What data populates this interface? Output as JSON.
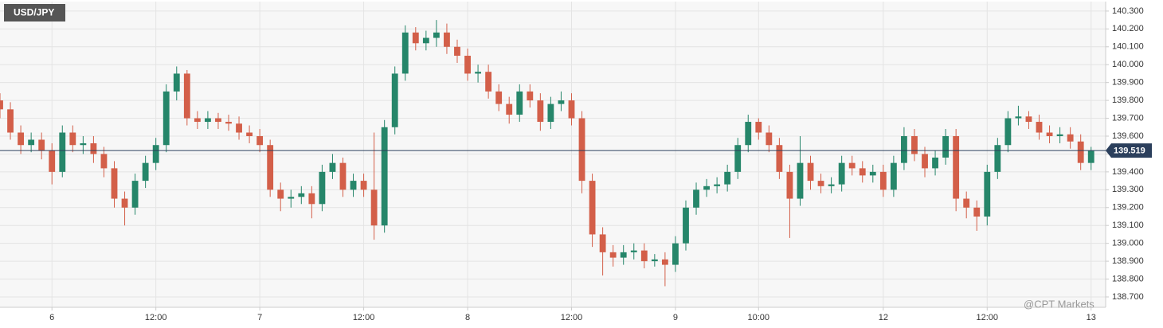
{
  "chart_data": {
    "type": "candlestick",
    "title": "USD/JPY",
    "watermark": "@CPT Markets",
    "up_color": "#26866a",
    "down_color": "#d35f49",
    "grid": true,
    "last_price": 139.519,
    "last_price_color": "#2b3f5c",
    "xlim": [
      0,
      106.4
    ],
    "xticks": [
      {
        "value": 5,
        "label": "6"
      },
      {
        "value": 15,
        "label": "12:00"
      },
      {
        "value": 25,
        "label": "7"
      },
      {
        "value": 35,
        "label": "12:00"
      },
      {
        "value": 45,
        "label": "8"
      },
      {
        "value": 55,
        "label": "12:00"
      },
      {
        "value": 65,
        "label": "9"
      },
      {
        "value": 73,
        "label": "10:00"
      },
      {
        "value": 85,
        "label": "12"
      },
      {
        "value": 95,
        "label": "12:00"
      },
      {
        "value": 105,
        "label": "13"
      }
    ],
    "ylim": [
      138.642,
      140.353
    ],
    "yticks": [
      {
        "value": 138.7,
        "label": "138.700"
      },
      {
        "value": 138.8,
        "label": "138.800"
      },
      {
        "value": 138.9,
        "label": "138.900"
      },
      {
        "value": 139.0,
        "label": "139.000"
      },
      {
        "value": 139.1,
        "label": "139.100"
      },
      {
        "value": 139.2,
        "label": "139.200"
      },
      {
        "value": 139.3,
        "label": "139.300"
      },
      {
        "value": 139.4,
        "label": "139.400"
      },
      {
        "value": 139.5,
        "label": "139.500"
      },
      {
        "value": 139.6,
        "label": "139.600"
      },
      {
        "value": 139.7,
        "label": "139.700"
      },
      {
        "value": 139.8,
        "label": "139.800"
      },
      {
        "value": 139.9,
        "label": "139.900"
      },
      {
        "value": 140.0,
        "label": "140.000"
      },
      {
        "value": 140.1,
        "label": "140.100"
      },
      {
        "value": 140.2,
        "label": "140.200"
      },
      {
        "value": 140.3,
        "label": "140.300"
      }
    ],
    "open": [
      139.8,
      139.75,
      139.62,
      139.55,
      139.58,
      139.52,
      139.4,
      139.62,
      139.55,
      139.56,
      139.5,
      139.42,
      139.25,
      139.2,
      139.35,
      139.45,
      139.55,
      139.85,
      139.95,
      139.7,
      139.68,
      139.7,
      139.68,
      139.67,
      139.62,
      139.6,
      139.55,
      139.3,
      139.25,
      139.26,
      139.28,
      139.22,
      139.4,
      139.45,
      139.3,
      139.35,
      139.3,
      139.1,
      139.65,
      139.95,
      140.18,
      140.12,
      140.15,
      140.18,
      140.1,
      140.05,
      139.95,
      139.96,
      139.85,
      139.78,
      139.72,
      139.85,
      139.8,
      139.68,
      139.78,
      139.8,
      139.7,
      139.35,
      139.05,
      138.95,
      138.92,
      138.95,
      138.96,
      138.9,
      138.91,
      138.88,
      139.0,
      139.2,
      139.3,
      139.32,
      139.33,
      139.4,
      139.55,
      139.68,
      139.62,
      139.55,
      139.4,
      139.25,
      139.45,
      139.35,
      139.32,
      139.33,
      139.45,
      139.42,
      139.38,
      139.4,
      139.3,
      139.45,
      139.6,
      139.5,
      139.42,
      139.48,
      139.6,
      139.25,
      139.2,
      139.15,
      139.4,
      139.55,
      139.7,
      139.71,
      139.68,
      139.62,
      139.6,
      139.61,
      139.57,
      139.45
    ],
    "high": [
      139.84,
      139.79,
      139.66,
      139.62,
      139.62,
      139.56,
      139.66,
      139.66,
      139.6,
      139.6,
      139.54,
      139.46,
      139.29,
      139.39,
      139.49,
      139.59,
      139.89,
      139.99,
      139.97,
      139.74,
      139.74,
      139.73,
      139.72,
      139.71,
      139.66,
      139.64,
      139.58,
      139.34,
      139.3,
      139.32,
      139.32,
      139.44,
      139.5,
      139.48,
      139.39,
      139.39,
      139.62,
      139.69,
      139.99,
      140.22,
      140.21,
      140.19,
      140.25,
      140.23,
      140.14,
      140.09,
      140.0,
      140.0,
      139.89,
      139.82,
      139.89,
      139.89,
      139.84,
      139.82,
      139.85,
      139.84,
      139.74,
      139.39,
      139.09,
      138.99,
      138.99,
      139.0,
      139.0,
      138.94,
      138.95,
      139.04,
      139.24,
      139.34,
      139.36,
      139.37,
      139.44,
      139.59,
      139.72,
      139.7,
      139.66,
      139.59,
      139.44,
      139.6,
      139.49,
      139.39,
      139.37,
      139.49,
      139.49,
      139.46,
      139.44,
      139.44,
      139.49,
      139.65,
      139.64,
      139.54,
      139.52,
      139.64,
      139.64,
      139.29,
      139.24,
      139.44,
      139.59,
      139.74,
      139.77,
      139.74,
      139.72,
      139.66,
      139.65,
      139.65,
      139.61,
      139.54
    ],
    "low": [
      139.7,
      139.58,
      139.5,
      139.51,
      139.47,
      139.33,
      139.37,
      139.51,
      139.5,
      139.45,
      139.37,
      139.2,
      139.1,
      139.16,
      139.31,
      139.41,
      139.51,
      139.8,
      139.66,
      139.64,
      139.64,
      139.64,
      139.63,
      139.58,
      139.56,
      139.51,
      139.26,
      139.18,
      139.2,
      139.22,
      139.14,
      139.18,
      139.36,
      139.26,
      139.26,
      139.26,
      139.02,
      139.06,
      139.61,
      139.91,
      140.08,
      140.08,
      140.1,
      140.06,
      140.01,
      139.91,
      139.9,
      139.81,
      139.74,
      139.67,
      139.68,
      139.76,
      139.63,
      139.64,
      139.74,
      139.66,
      139.28,
      138.98,
      138.82,
      138.87,
      138.88,
      138.91,
      138.86,
      138.87,
      138.76,
      138.84,
      138.96,
      139.16,
      139.26,
      139.28,
      139.29,
      139.36,
      139.51,
      139.58,
      139.51,
      139.36,
      139.03,
      139.21,
      139.3,
      139.28,
      139.28,
      139.29,
      139.38,
      139.34,
      139.34,
      139.26,
      139.26,
      139.41,
      139.46,
      139.37,
      139.38,
      139.44,
      139.18,
      139.14,
      139.07,
      139.1,
      139.36,
      139.51,
      139.66,
      139.64,
      139.58,
      139.56,
      139.56,
      139.53,
      139.41,
      139.41
    ],
    "close": [
      139.75,
      139.62,
      139.55,
      139.58,
      139.52,
      139.4,
      139.62,
      139.55,
      139.56,
      139.5,
      139.42,
      139.25,
      139.2,
      139.35,
      139.45,
      139.55,
      139.85,
      139.95,
      139.7,
      139.68,
      139.7,
      139.68,
      139.67,
      139.62,
      139.6,
      139.55,
      139.3,
      139.25,
      139.26,
      139.28,
      139.22,
      139.4,
      139.45,
      139.3,
      139.35,
      139.3,
      139.1,
      139.65,
      139.95,
      140.18,
      140.12,
      140.15,
      140.18,
      140.1,
      140.05,
      139.95,
      139.96,
      139.85,
      139.78,
      139.72,
      139.85,
      139.8,
      139.68,
      139.78,
      139.8,
      139.7,
      139.35,
      139.05,
      138.95,
      138.92,
      138.95,
      138.96,
      138.9,
      138.91,
      138.88,
      139.0,
      139.2,
      139.3,
      139.32,
      139.33,
      139.4,
      139.55,
      139.68,
      139.62,
      139.55,
      139.4,
      139.25,
      139.45,
      139.35,
      139.32,
      139.33,
      139.45,
      139.42,
      139.38,
      139.4,
      139.3,
      139.45,
      139.6,
      139.5,
      139.42,
      139.48,
      139.6,
      139.25,
      139.2,
      139.15,
      139.4,
      139.55,
      139.7,
      139.71,
      139.68,
      139.62,
      139.6,
      139.61,
      139.57,
      139.45,
      139.519
    ]
  }
}
